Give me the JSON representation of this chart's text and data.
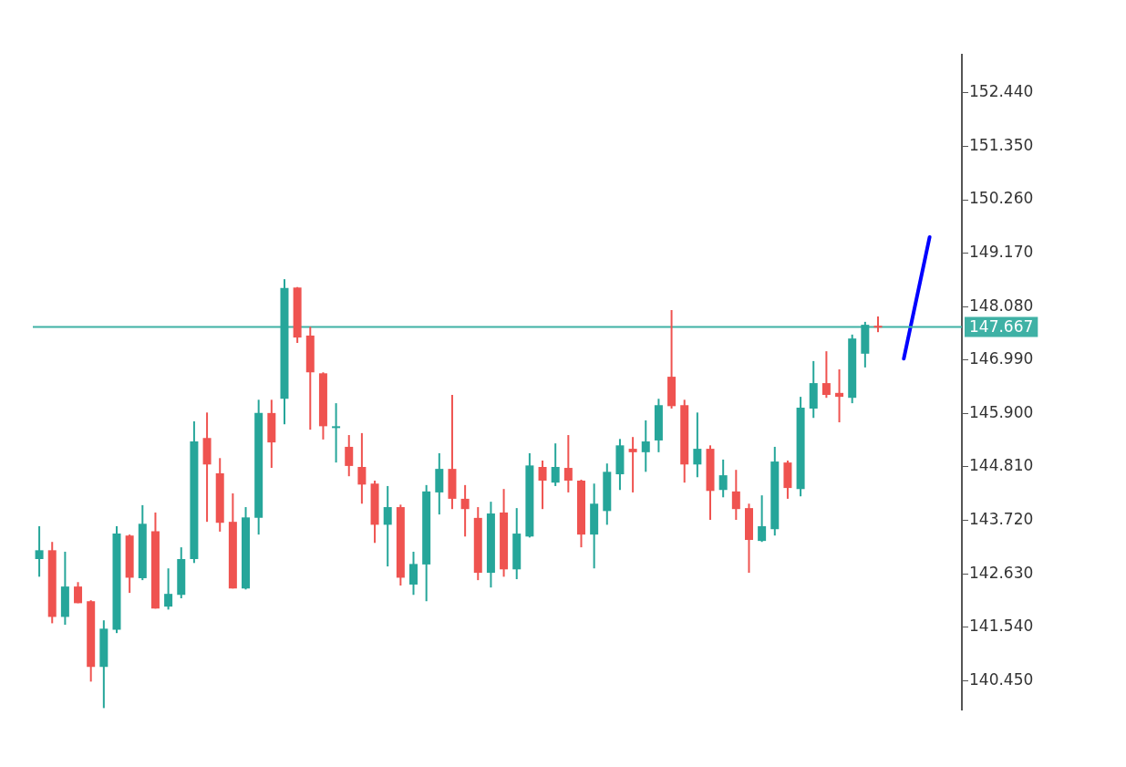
{
  "chart_data": {
    "type": "candlestick",
    "categories": [
      null,
      null,
      null,
      null,
      null,
      null,
      null,
      null,
      null,
      null,
      null,
      null,
      null,
      null,
      null,
      null,
      null,
      null,
      null,
      null,
      null,
      null,
      null,
      null,
      null,
      null,
      null,
      null,
      null,
      null,
      null,
      null,
      null,
      null,
      null,
      null,
      null,
      null,
      null,
      null,
      null,
      null,
      null,
      null,
      null,
      null,
      null,
      null,
      null,
      null,
      null,
      null,
      null,
      null,
      null,
      null,
      null,
      null,
      null,
      null,
      null,
      null,
      null,
      null,
      null,
      null,
      null,
      null,
      null,
      null,
      null,
      null
    ],
    "ohlc": [
      [
        142.93,
        143.6,
        142.57,
        143.11
      ],
      [
        143.11,
        143.28,
        141.62,
        141.75
      ],
      [
        141.75,
        143.08,
        141.59,
        142.37
      ],
      [
        142.37,
        142.46,
        142.03,
        142.03
      ],
      [
        142.07,
        142.09,
        140.43,
        140.73
      ],
      [
        140.73,
        141.68,
        139.89,
        141.51
      ],
      [
        141.49,
        143.6,
        141.42,
        143.45
      ],
      [
        143.41,
        143.43,
        142.24,
        142.55
      ],
      [
        142.54,
        144.03,
        142.5,
        143.65
      ],
      [
        143.5,
        143.88,
        141.92,
        141.92
      ],
      [
        141.96,
        142.74,
        141.9,
        142.22
      ],
      [
        142.2,
        143.17,
        142.13,
        142.93
      ],
      [
        142.93,
        145.74,
        142.85,
        145.33
      ],
      [
        145.4,
        145.92,
        143.69,
        144.86
      ],
      [
        144.68,
        144.99,
        143.49,
        143.67
      ],
      [
        143.69,
        144.27,
        142.33,
        142.33
      ],
      [
        142.33,
        143.99,
        142.31,
        143.78
      ],
      [
        143.77,
        146.18,
        143.43,
        145.91
      ],
      [
        145.91,
        146.18,
        144.79,
        145.31
      ],
      [
        146.2,
        148.64,
        145.68,
        148.46
      ],
      [
        148.47,
        148.48,
        147.34,
        147.45
      ],
      [
        147.49,
        147.67,
        145.57,
        146.74
      ],
      [
        146.72,
        146.74,
        145.37,
        145.64
      ],
      [
        145.63,
        146.11,
        144.9,
        145.64
      ],
      [
        145.22,
        145.46,
        144.62,
        144.83
      ],
      [
        144.81,
        145.5,
        144.06,
        144.45
      ],
      [
        144.47,
        144.53,
        143.26,
        143.63
      ],
      [
        143.63,
        144.42,
        142.78,
        143.99
      ],
      [
        143.99,
        144.04,
        142.39,
        142.55
      ],
      [
        142.41,
        143.08,
        142.2,
        142.83
      ],
      [
        142.82,
        144.44,
        142.07,
        144.31
      ],
      [
        144.29,
        145.09,
        143.84,
        144.77
      ],
      [
        144.77,
        146.28,
        143.95,
        144.16
      ],
      [
        144.16,
        144.44,
        143.39,
        143.95
      ],
      [
        143.77,
        143.99,
        142.5,
        142.65
      ],
      [
        142.65,
        144.1,
        142.35,
        143.86
      ],
      [
        143.88,
        144.36,
        142.57,
        142.72
      ],
      [
        142.72,
        143.97,
        142.52,
        143.45
      ],
      [
        143.39,
        145.09,
        143.37,
        144.84
      ],
      [
        144.81,
        144.94,
        143.95,
        144.53
      ],
      [
        144.49,
        145.29,
        144.42,
        144.81
      ],
      [
        144.79,
        145.46,
        144.29,
        144.53
      ],
      [
        144.53,
        144.55,
        143.17,
        143.43
      ],
      [
        143.43,
        144.47,
        142.74,
        144.06
      ],
      [
        143.91,
        144.88,
        143.63,
        144.71
      ],
      [
        144.66,
        145.38,
        144.34,
        145.25
      ],
      [
        145.18,
        145.42,
        144.29,
        145.11
      ],
      [
        145.11,
        145.76,
        144.71,
        145.33
      ],
      [
        145.35,
        146.2,
        145.11,
        146.07
      ],
      [
        146.65,
        148.01,
        146.0,
        146.05
      ],
      [
        146.07,
        146.18,
        144.49,
        144.86
      ],
      [
        144.86,
        145.92,
        144.6,
        145.18
      ],
      [
        145.18,
        145.25,
        143.73,
        144.32
      ],
      [
        144.34,
        144.96,
        144.19,
        144.64
      ],
      [
        144.31,
        144.75,
        143.73,
        143.95
      ],
      [
        143.97,
        144.06,
        142.65,
        143.32
      ],
      [
        143.3,
        144.23,
        143.28,
        143.6
      ],
      [
        143.54,
        145.22,
        143.41,
        144.92
      ],
      [
        144.9,
        144.94,
        144.16,
        144.38
      ],
      [
        144.36,
        146.24,
        144.21,
        146.02
      ],
      [
        146.0,
        146.97,
        145.81,
        146.52
      ],
      [
        146.52,
        147.17,
        146.22,
        146.28
      ],
      [
        146.32,
        146.8,
        145.72,
        146.24
      ],
      [
        146.22,
        147.51,
        146.11,
        147.43
      ],
      [
        147.12,
        147.77,
        146.84,
        147.71
      ],
      [
        147.69,
        147.88,
        147.56,
        147.66
      ],
      null,
      null,
      null,
      null,
      null,
      null
    ],
    "colors": [
      "#26a69a",
      "#ef5350",
      "#26a69a",
      "#ef5350",
      "#ef5350",
      "#26a69a",
      "#26a69a",
      "#ef5350",
      "#26a69a",
      "#ef5350",
      "#26a69a",
      "#26a69a",
      "#26a69a",
      "#ef5350",
      "#ef5350",
      "#ef5350",
      "#26a69a",
      "#26a69a",
      "#ef5350",
      "#26a69a",
      "#ef5350",
      "#ef5350",
      "#ef5350",
      "#26a69a",
      "#ef5350",
      "#ef5350",
      "#ef5350",
      "#26a69a",
      "#ef5350",
      "#26a69a",
      "#26a69a",
      "#26a69a",
      "#ef5350",
      "#ef5350",
      "#ef5350",
      "#26a69a",
      "#ef5350",
      "#26a69a",
      "#26a69a",
      "#ef5350",
      "#26a69a",
      "#ef5350",
      "#ef5350",
      "#26a69a",
      "#26a69a",
      "#26a69a",
      "#ef5350",
      "#26a69a",
      "#26a69a",
      "#ef5350",
      "#ef5350",
      "#26a69a",
      "#ef5350",
      "#26a69a",
      "#ef5350",
      "#ef5350",
      "#26a69a",
      "#26a69a",
      "#ef5350",
      "#26a69a",
      "#26a69a",
      "#ef5350",
      "#ef5350",
      "#26a69a",
      "#26a69a",
      "#ef5350",
      null,
      null,
      null,
      null,
      null,
      null
    ],
    "series": [
      {
        "type": "line",
        "color": "#0000ff",
        "values": [
          null,
          null,
          null,
          null,
          null,
          null,
          null,
          null,
          null,
          null,
          null,
          null,
          null,
          null,
          null,
          null,
          null,
          null,
          null,
          null,
          null,
          null,
          null,
          null,
          null,
          null,
          null,
          null,
          null,
          null,
          null,
          null,
          null,
          null,
          null,
          null,
          null,
          null,
          null,
          null,
          null,
          null,
          null,
          null,
          null,
          null,
          null,
          null,
          null,
          null,
          null,
          null,
          null,
          null,
          null,
          null,
          null,
          null,
          null,
          null,
          null,
          null,
          null,
          null,
          null,
          null,
          null,
          147.02,
          null,
          149.5,
          null,
          null
        ]
      }
    ],
    "ylim": [
      139.86,
      153.22
    ],
    "yticks": [
      {
        "value": 140.45,
        "label": "140.450"
      },
      {
        "value": 141.54,
        "label": "141.540"
      },
      {
        "value": 142.63,
        "label": "142.630"
      },
      {
        "value": 143.72,
        "label": "143.720"
      },
      {
        "value": 144.81,
        "label": "144.810"
      },
      {
        "value": 145.9,
        "label": "145.900"
      },
      {
        "value": 146.99,
        "label": "146.990"
      },
      {
        "value": 148.08,
        "label": "148.080"
      },
      {
        "value": 149.17,
        "label": "149.170"
      },
      {
        "value": 150.26,
        "label": "150.260"
      },
      {
        "value": 151.35,
        "label": "151.350"
      },
      {
        "value": 152.44,
        "label": "152.440"
      }
    ],
    "ref_lines": [
      {
        "axis": "y",
        "value": 147.667,
        "label": "147.667",
        "color": "#3fb1a5"
      }
    ],
    "tick_labels": "y"
  }
}
